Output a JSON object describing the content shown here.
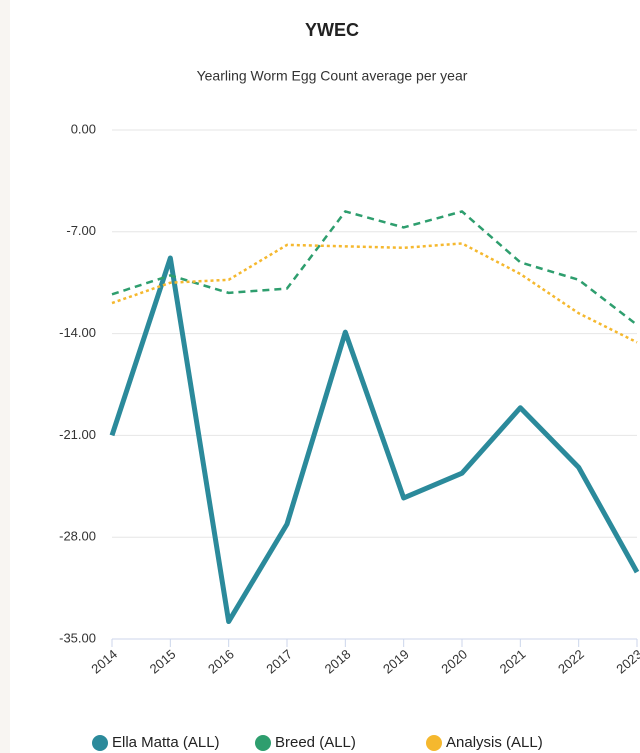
{
  "chart_data": {
    "type": "line",
    "title": "YWEC",
    "subtitle": "Yearling Worm Egg Count average per year",
    "categories": [
      "2014",
      "2015",
      "2016",
      "2017",
      "2018",
      "2019",
      "2020",
      "2021",
      "2022",
      "2023"
    ],
    "series": [
      {
        "name": "Ella Matta (ALL)",
        "color": "#2b8a9b",
        "style": "solid",
        "values": [
          -21.0,
          -8.8,
          -33.8,
          -27.1,
          -13.9,
          -25.3,
          -23.6,
          -19.1,
          -23.2,
          -30.4
        ]
      },
      {
        "name": "Breed (ALL)",
        "color": "#2e9e6e",
        "style": "dashed",
        "values": [
          -11.3,
          -10.0,
          -11.2,
          -10.9,
          -5.6,
          -6.7,
          -5.6,
          -9.1,
          -10.3,
          -13.4
        ]
      },
      {
        "name": "Analysis (ALL)",
        "color": "#f5b82e",
        "style": "dotted",
        "values": [
          -11.9,
          -10.5,
          -10.3,
          -7.9,
          -8.0,
          -8.1,
          -7.8,
          -9.9,
          -12.6,
          -14.6
        ]
      }
    ],
    "ylim": [
      -35,
      0
    ],
    "yticks": [
      {
        "value": 0,
        "label": "0.00"
      },
      {
        "value": -7,
        "label": "-7.00"
      },
      {
        "value": -14,
        "label": "-14.00"
      },
      {
        "value": -21,
        "label": "-21.00"
      },
      {
        "value": -28,
        "label": "-28.00"
      },
      {
        "value": -35,
        "label": "-35.00"
      }
    ],
    "grid": true
  }
}
